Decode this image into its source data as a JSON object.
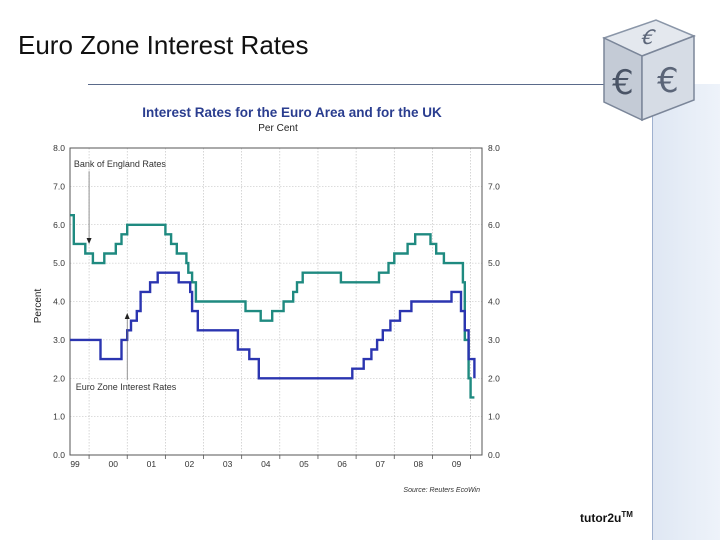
{
  "slide": {
    "title": "Euro Zone Interest Rates",
    "footer_brand": "tutor2u",
    "footer_mark": "TM"
  },
  "chart_data": {
    "type": "line",
    "title": "Interest Rates for the Euro Area and for the UK",
    "subtitle": "Per Cent",
    "ylabel": "Percent",
    "xlabel": "",
    "source": "Source: Reuters EcoWin",
    "ylim": [
      0,
      8
    ],
    "xlim": [
      1998.5,
      2009.3
    ],
    "y_ticks": [
      "0.0",
      "1.0",
      "2.0",
      "3.0",
      "4.0",
      "5.0",
      "6.0",
      "7.0",
      "8.0"
    ],
    "x_ticks": [
      {
        "label": "99",
        "x": 1999
      },
      {
        "label": "00",
        "x": 2000
      },
      {
        "label": "01",
        "x": 2001
      },
      {
        "label": "02",
        "x": 2002
      },
      {
        "label": "03",
        "x": 2003
      },
      {
        "label": "04",
        "x": 2004
      },
      {
        "label": "05",
        "x": 2005
      },
      {
        "label": "06",
        "x": 2006
      },
      {
        "label": "07",
        "x": 2007
      },
      {
        "label": "08",
        "x": 2008
      },
      {
        "label": "09",
        "x": 2009
      }
    ],
    "grid": true,
    "series": [
      {
        "name": "Bank of England Rates",
        "color": "#1f8a80",
        "step_points": [
          [
            1998.5,
            6.25
          ],
          [
            1998.6,
            5.5
          ],
          [
            1998.9,
            5.25
          ],
          [
            1999.1,
            5.0
          ],
          [
            1999.4,
            5.25
          ],
          [
            1999.7,
            5.5
          ],
          [
            1999.85,
            5.75
          ],
          [
            2000.0,
            6.0
          ],
          [
            2001.0,
            5.75
          ],
          [
            2001.15,
            5.5
          ],
          [
            2001.3,
            5.25
          ],
          [
            2001.55,
            5.0
          ],
          [
            2001.6,
            4.75
          ],
          [
            2001.7,
            4.5
          ],
          [
            2001.8,
            4.0
          ],
          [
            2003.1,
            3.75
          ],
          [
            2003.5,
            3.5
          ],
          [
            2003.8,
            3.75
          ],
          [
            2004.1,
            4.0
          ],
          [
            2004.35,
            4.25
          ],
          [
            2004.45,
            4.5
          ],
          [
            2004.6,
            4.75
          ],
          [
            2005.6,
            4.5
          ],
          [
            2006.6,
            4.75
          ],
          [
            2006.85,
            5.0
          ],
          [
            2007.0,
            5.25
          ],
          [
            2007.35,
            5.5
          ],
          [
            2007.55,
            5.75
          ],
          [
            2007.95,
            5.5
          ],
          [
            2008.1,
            5.25
          ],
          [
            2008.3,
            5.0
          ],
          [
            2008.8,
            4.5
          ],
          [
            2008.85,
            3.0
          ],
          [
            2008.95,
            2.0
          ],
          [
            2009.0,
            1.5
          ],
          [
            2009.1,
            1.5
          ]
        ]
      },
      {
        "name": "Euro Zone Interest Rates",
        "color": "#2b35b0",
        "step_points": [
          [
            1998.5,
            3.0
          ],
          [
            1999.0,
            3.0
          ],
          [
            1999.3,
            2.5
          ],
          [
            1999.85,
            3.0
          ],
          [
            2000.0,
            3.25
          ],
          [
            2000.1,
            3.5
          ],
          [
            2000.25,
            3.75
          ],
          [
            2000.35,
            4.25
          ],
          [
            2000.6,
            4.5
          ],
          [
            2000.8,
            4.75
          ],
          [
            2001.35,
            4.5
          ],
          [
            2001.65,
            4.25
          ],
          [
            2001.7,
            3.75
          ],
          [
            2001.85,
            3.25
          ],
          [
            2002.9,
            2.75
          ],
          [
            2003.2,
            2.5
          ],
          [
            2003.45,
            2.0
          ],
          [
            2005.9,
            2.25
          ],
          [
            2006.2,
            2.5
          ],
          [
            2006.4,
            2.75
          ],
          [
            2006.55,
            3.0
          ],
          [
            2006.7,
            3.25
          ],
          [
            2006.9,
            3.5
          ],
          [
            2007.15,
            3.75
          ],
          [
            2007.45,
            4.0
          ],
          [
            2008.5,
            4.25
          ],
          [
            2008.75,
            3.75
          ],
          [
            2008.85,
            3.25
          ],
          [
            2008.95,
            2.5
          ],
          [
            2009.1,
            2.0
          ]
        ]
      }
    ],
    "annotations": [
      {
        "text": "Bank of England Rates",
        "x": 1998.6,
        "y": 7.5,
        "arrow_to": [
          1999.0,
          5.5
        ]
      },
      {
        "text": "Euro Zone Interest Rates",
        "x": 1998.65,
        "y": 1.7,
        "arrow_to": [
          2000.0,
          3.7
        ]
      }
    ]
  }
}
